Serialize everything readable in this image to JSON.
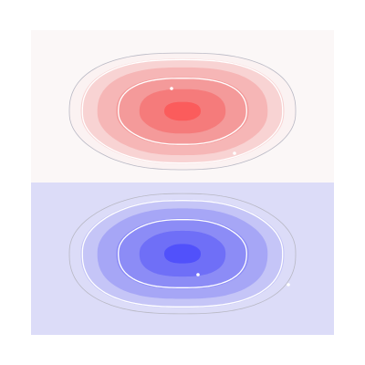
{
  "chart_data": {
    "type": "heatmap",
    "title": "",
    "xlabel": "",
    "ylabel": "",
    "axes_visible": false,
    "colorbar": false,
    "colormap": "bwr",
    "colors": {
      "positive_max": "#ff5050",
      "neutral": "#ffffff",
      "negative_max": "#5050ff",
      "contour_line": "#ffffff"
    },
    "regions": [
      {
        "name": "positive-lobe",
        "sign": "positive",
        "fill_levels": [
          {
            "level": 0.05,
            "color": "#fbf2f2"
          },
          {
            "level": 0.2,
            "color": "#f8d3d3"
          },
          {
            "level": 0.4,
            "color": "#f6b6b6"
          },
          {
            "level": 0.6,
            "color": "#f49a9a"
          },
          {
            "level": 0.8,
            "color": "#f57b7b"
          },
          {
            "level": 0.95,
            "color": "#fb5c5c"
          }
        ],
        "contour_levels": [
          0.2,
          0.6
        ]
      },
      {
        "name": "negative-lobe",
        "sign": "negative",
        "fill_levels": [
          {
            "level": 0.05,
            "color": "#dcdcf8"
          },
          {
            "level": 0.2,
            "color": "#c5c5f7"
          },
          {
            "level": 0.4,
            "color": "#a6a6f6"
          },
          {
            "level": 0.6,
            "color": "#8c8cf6"
          },
          {
            "level": 0.8,
            "color": "#6f6ff7"
          },
          {
            "level": 0.95,
            "color": "#5151fb"
          }
        ],
        "contour_levels": [
          0.2,
          0.6
        ]
      }
    ]
  }
}
